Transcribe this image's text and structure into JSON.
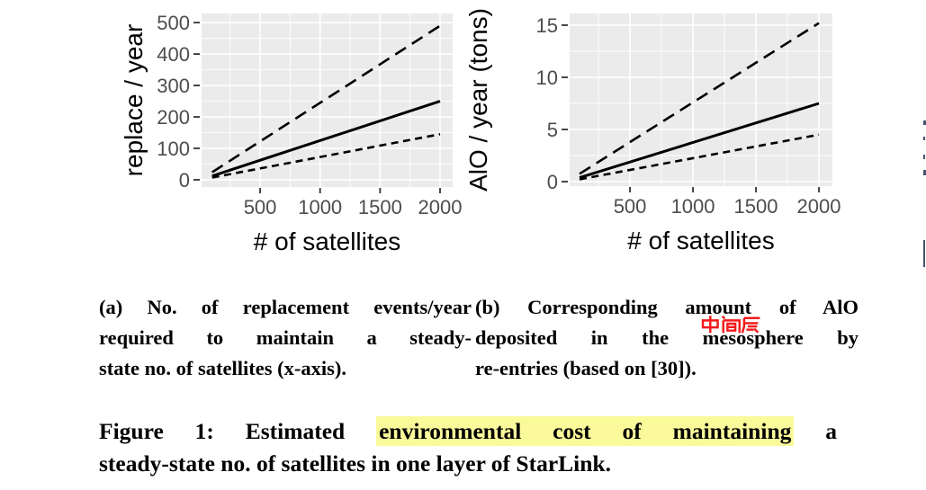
{
  "colors": {
    "background": "#ffffff",
    "panel_bg": "#ebebeb",
    "grid": "#ffffff",
    "tick_text": "#4d4d4d",
    "tick_mark": "#333333",
    "axis_title": "#000000",
    "series_line": "#000000",
    "caption_text": "#000000",
    "highlight": "#fafa9b",
    "watermark": "#f21b1b",
    "edge_mark": "#45536e"
  },
  "chart_data": [
    {
      "id": "a",
      "type": "line",
      "title": "",
      "xlabel": "# of satellites",
      "ylabel": "replace / year",
      "x_ticks": [
        500,
        1000,
        1500,
        2000
      ],
      "y_ticks": [
        0,
        100,
        200,
        300,
        400,
        500
      ],
      "x_minor_gridlines": [
        250,
        750,
        1250,
        1750
      ],
      "y_minor_gridlines": [
        50,
        150,
        250,
        350,
        450
      ],
      "x_display_range": [
        12,
        2105
      ],
      "y_display_range": [
        -23,
        529
      ],
      "x_data_range": [
        100,
        2000
      ],
      "grid": "on",
      "legend": "none",
      "series": [
        {
          "linetype": "longdash",
          "x": [
            100,
            2000
          ],
          "y": [
            24,
            490
          ]
        },
        {
          "linetype": "solid",
          "x": [
            100,
            2000
          ],
          "y": [
            12,
            250
          ]
        },
        {
          "linetype": "dash",
          "x": [
            100,
            2000
          ],
          "y": [
            7,
            145
          ]
        }
      ],
      "layout": {
        "panel": {
          "l": 224,
          "r": 503,
          "t": 15,
          "b": 208
        },
        "ylabel_x": 158
      }
    },
    {
      "id": "b",
      "type": "line",
      "title": "",
      "xlabel": "# of satellites",
      "ylabel": "AlO / year (tons)",
      "x_ticks": [
        500,
        1000,
        1500,
        2000
      ],
      "y_ticks": [
        0,
        5,
        10,
        15
      ],
      "x_minor_gridlines": [
        250,
        750,
        1250,
        1750
      ],
      "y_minor_gridlines": [
        2.5,
        7.5,
        12.5
      ],
      "x_display_range": [
        21,
        2107
      ],
      "y_display_range": [
        -0.43,
        16.12
      ],
      "x_data_range": [
        100,
        2000
      ],
      "grid": "on",
      "legend": "none",
      "series": [
        {
          "linetype": "longdash",
          "x": [
            100,
            2000
          ],
          "y": [
            0.75,
            15.2
          ]
        },
        {
          "linetype": "solid",
          "x": [
            100,
            2000
          ],
          "y": [
            0.38,
            7.5
          ]
        },
        {
          "linetype": "dash",
          "x": [
            100,
            2000
          ],
          "y": [
            0.22,
            4.5
          ]
        }
      ],
      "layout": {
        "panel": {
          "l": 633,
          "r": 925,
          "t": 15,
          "b": 207
        },
        "ylabel_x": 541
      }
    }
  ],
  "subcaptions": {
    "a": {
      "lines": [
        "(a) No. of replacement events/year",
        "required to maintain a steady-",
        "state no. of satellites (x-axis)."
      ]
    },
    "b": {
      "lines": [
        "(b) Corresponding amount of AlO",
        "deposited in the mesosphere by",
        "re-entries (based on [30])."
      ]
    }
  },
  "figure_caption": {
    "line1_prefix": "Figure 1: Estimated ",
    "line1_highlight": "environmental cost of maintaining",
    "line1_suffix": " a",
    "line2": "steady-state no. of satellites in one layer of StarLink."
  },
  "watermark": {
    "text": "中间层"
  }
}
